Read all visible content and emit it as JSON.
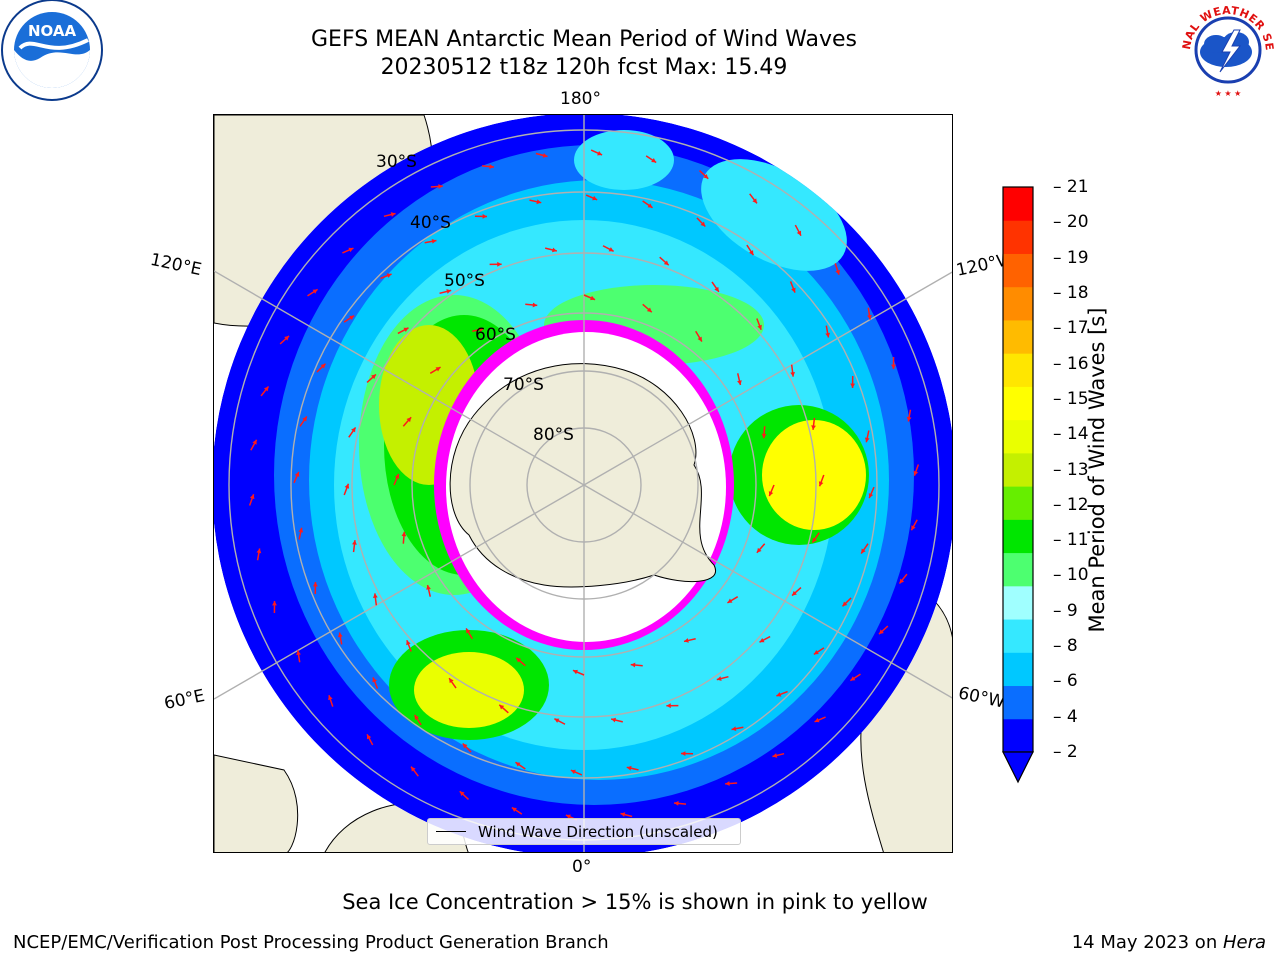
{
  "header": {
    "title_line1": "GEFS MEAN Antarctic Mean Period of Wind Waves",
    "title_line2": "20230512 t18z 120h fcst   Max: 15.49"
  },
  "logos": {
    "noaa_text": "NOAA",
    "nws_text": "NATIONAL WEATHER SERVICE"
  },
  "map": {
    "longitude_labels": [
      "180°",
      "120°E",
      "120°W",
      "60°E",
      "60°W",
      "0°"
    ],
    "latitude_labels": [
      "30°S",
      "40°S",
      "50°S",
      "60°S",
      "70°S",
      "80°S"
    ],
    "legend_label": "Wind Wave Direction (unscaled)"
  },
  "colorbar": {
    "label": "Mean Period of Wind Waves [s]",
    "ticks": [
      "21",
      "20",
      "19",
      "18",
      "17",
      "16",
      "15",
      "14",
      "13",
      "12",
      "11",
      "10",
      "9",
      "8",
      "6",
      "4",
      "2"
    ],
    "colors": [
      "#0000ff",
      "#0a6eff",
      "#00c8ff",
      "#35e8ff",
      "#a0ffff",
      "#4dff70",
      "#00e600",
      "#66ee00",
      "#c4f000",
      "#eaff00",
      "#ffff00",
      "#ffe600",
      "#ffbb00",
      "#ff8c00",
      "#ff6200",
      "#ff3300",
      "#ff0000"
    ]
  },
  "footer": {
    "note": "Sea Ice Concentration > 15% is shown in pink to yellow",
    "left": "NCEP/EMC/Verification Post Processing Product Generation Branch",
    "right_prefix": "14 May 2023 on ",
    "right_machine": "Hera"
  }
}
